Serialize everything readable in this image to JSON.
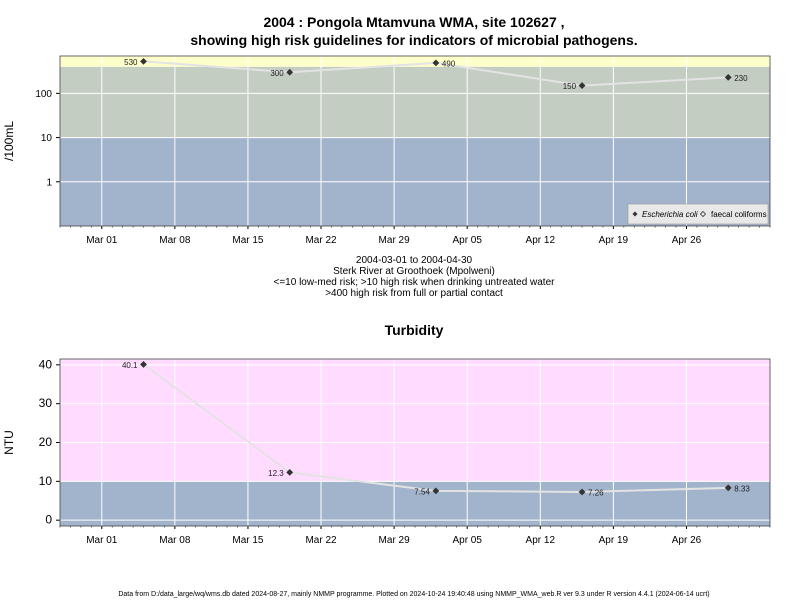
{
  "title_line1": "2004 : Pongola Mtamvuna WMA, site 102627 ,",
  "title_line2": "showing high risk guidelines for indicators of microbial pathogens.",
  "caption": {
    "line1": "2004-03-01 to 2004-04-30",
    "line2": "Sterk River at Groothoek (Mpolweni)",
    "line3": "<=10 low-med risk; >10 high risk when drinking untreated water",
    "line4": ">400 high risk from full or partial contact"
  },
  "footer": "Data from D:/data_large/wq/wms.db dated 2024-08-27, mainly NMMP programme. Plotted on 2024-10-24 19:40:48 using NMMP_WMA_web.R ver 9.3 under R version 4.4.1 (2024-06-14 ucrt)",
  "colors": {
    "band_low": "#a2b3cc",
    "band_mid": "#c3cdc2",
    "band_high": "#ffffcc",
    "turb_high": "#ffdcff",
    "turb_low": "#a2b3cc",
    "line": "#e3e3e3",
    "grid": "#ffffff",
    "marker": "#333333"
  },
  "chart_data": [
    {
      "type": "line",
      "title": "",
      "ylabel": "/100mL",
      "yscale": "log",
      "yticks": [
        1,
        10,
        100
      ],
      "ytick_labels": [
        "1",
        "10",
        "100"
      ],
      "xlim": [
        "2004-02-26",
        "2004-05-04"
      ],
      "ylim": [
        0.1,
        700
      ],
      "xticks": [
        "2004-03-01",
        "2004-03-08",
        "2004-03-15",
        "2004-03-22",
        "2004-03-29",
        "2004-04-05",
        "2004-04-12",
        "2004-04-19",
        "2004-04-26"
      ],
      "xtick_labels": [
        "Mar 01",
        "Mar 08",
        "Mar 15",
        "Mar 22",
        "Mar 29",
        "Apr 05",
        "Apr 12",
        "Apr 19",
        "Apr 26"
      ],
      "bands": [
        {
          "from": 0.1,
          "to": 10,
          "color": "#a2b3cc"
        },
        {
          "from": 10,
          "to": 400,
          "color": "#c3cdc2"
        },
        {
          "from": 400,
          "to": 700,
          "color": "#ffffcc"
        }
      ],
      "series": [
        {
          "name": "Escherichia coli",
          "x": [
            "2004-03-05",
            "2004-03-19",
            "2004-04-02",
            "2004-04-16",
            "2004-04-30"
          ],
          "values": [
            530,
            300,
            490,
            150,
            230
          ],
          "labels": [
            "530",
            "300",
            "490",
            "150",
            "230"
          ]
        }
      ],
      "legend": {
        "position": "bottom-right",
        "entries": [
          "Escherichia coli",
          "faecal coliforms"
        ]
      },
      "grid": true
    },
    {
      "type": "line",
      "title": "Turbidity",
      "ylabel": "NTU",
      "yscale": "linear",
      "yticks": [
        0,
        10,
        20,
        30,
        40
      ],
      "ytick_labels": [
        "0",
        "10",
        "20",
        "30",
        "40"
      ],
      "xlim": [
        "2004-02-26",
        "2004-05-04"
      ],
      "ylim": [
        -1.5,
        41.5
      ],
      "xticks": [
        "2004-03-01",
        "2004-03-08",
        "2004-03-15",
        "2004-03-22",
        "2004-03-29",
        "2004-04-05",
        "2004-04-12",
        "2004-04-19",
        "2004-04-26"
      ],
      "xtick_labels": [
        "Mar 01",
        "Mar 08",
        "Mar 15",
        "Mar 22",
        "Mar 29",
        "Apr 05",
        "Apr 12",
        "Apr 19",
        "Apr 26"
      ],
      "bands": [
        {
          "from": -1.5,
          "to": 10,
          "color": "#a2b3cc"
        },
        {
          "from": 10,
          "to": 41.5,
          "color": "#ffdcff"
        }
      ],
      "series": [
        {
          "name": "",
          "x": [
            "2004-03-05",
            "2004-03-19",
            "2004-04-02",
            "2004-04-16",
            "2004-04-30"
          ],
          "values": [
            40.1,
            12.3,
            7.54,
            7.26,
            8.33
          ],
          "labels": [
            "40.1",
            "12.3",
            "7.54",
            "7.26",
            "8.33"
          ]
        }
      ],
      "grid": true
    }
  ]
}
